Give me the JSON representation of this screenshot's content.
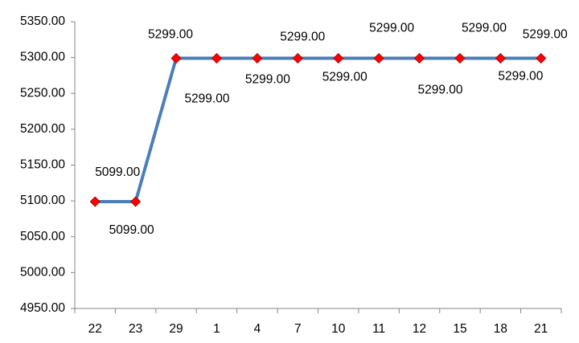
{
  "chart_data": {
    "type": "line",
    "categories": [
      "22",
      "23",
      "29",
      "1",
      "4",
      "7",
      "10",
      "11",
      "12",
      "15",
      "18",
      "21"
    ],
    "series": [
      {
        "color": "#4a7ebb",
        "marker_color": "#ff0000",
        "values": [
          5099,
          5099,
          5299,
          5299,
          5299,
          5299,
          5299,
          5299,
          5299,
          5299,
          5299,
          5299
        ],
        "value_labels": [
          "5099.00",
          "5099.00",
          "5299.00",
          "5299.00",
          "5299.00",
          "5299.00",
          "5299.00",
          "5299.00",
          "5299.00",
          "5299.00",
          "5299.00",
          "5299.00"
        ]
      }
    ],
    "ylim": [
      4950,
      5350
    ],
    "yticks": [
      {
        "value": 4950,
        "label": "4950.00"
      },
      {
        "value": 5000,
        "label": "5000.00"
      },
      {
        "value": 5050,
        "label": "5050.00"
      },
      {
        "value": 5100,
        "label": "5100.00"
      },
      {
        "value": 5150,
        "label": "5150.00"
      },
      {
        "value": 5200,
        "label": "5200.00"
      },
      {
        "value": 5250,
        "label": "5250.00"
      },
      {
        "value": 5300,
        "label": "5300.00"
      },
      {
        "value": 5350,
        "label": "5350.00"
      }
    ],
    "grid": false
  }
}
